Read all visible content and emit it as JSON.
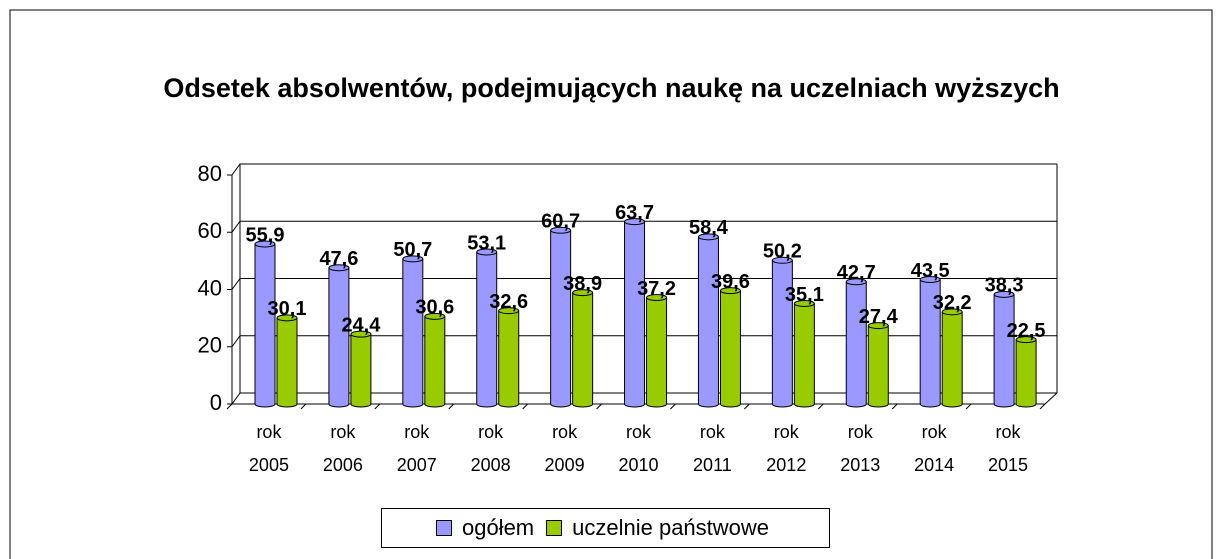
{
  "chart_data": {
    "type": "bar",
    "title": "Odsetek absolwentów, podejmujących naukę na uczelniach wyższych",
    "categories": [
      "rok 2005",
      "rok 2006",
      "rok 2007",
      "rok 2008",
      "rok 2009",
      "rok 2010",
      "rok 2011",
      "rok 2012",
      "rok 2013",
      "rok 2014",
      "rok 2015"
    ],
    "series": [
      {
        "name": "ogółem",
        "color": "#9999ff",
        "values": [
          55.9,
          47.6,
          50.7,
          53.1,
          60.7,
          63.7,
          58.4,
          50.2,
          42.7,
          43.5,
          38.3
        ],
        "value_labels": [
          "55,9",
          "47,6",
          "50,7",
          "53,1",
          "60,7",
          "63,7",
          "58,4",
          "50,2",
          "42,7",
          "43,5",
          "38,3"
        ]
      },
      {
        "name": "uczelnie państwowe",
        "color": "#99cc00",
        "values": [
          30.1,
          24.4,
          30.6,
          32.6,
          38.9,
          37.2,
          39.6,
          35.1,
          27.4,
          32.2,
          22.5
        ],
        "value_labels": [
          "30,1",
          "24,4",
          "30,6",
          "32,6",
          "38,9",
          "37,2",
          "39,6",
          "35,1",
          "27,4",
          "32,2",
          "22,5"
        ]
      }
    ],
    "ylim": [
      0,
      80
    ],
    "yticks": [
      0,
      20,
      40,
      60,
      80
    ],
    "grid": true,
    "legend": "bottom"
  }
}
